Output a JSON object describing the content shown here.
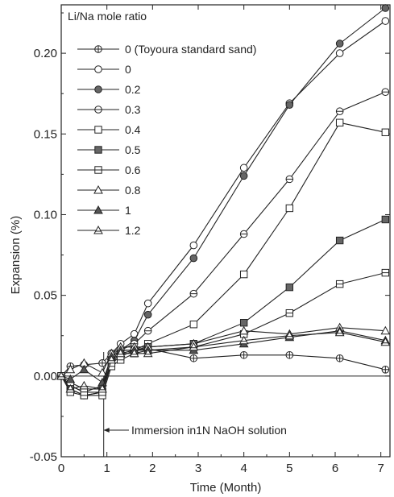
{
  "chart_data": {
    "type": "line",
    "xlabel": "Time (Month)",
    "ylabel": "Expansion (%)",
    "xlim": [
      0,
      7.2
    ],
    "ylim": [
      -0.05,
      0.23
    ],
    "xticks": [
      0,
      1,
      2,
      3,
      4,
      5,
      6,
      7
    ],
    "yticks": [
      -0.05,
      0.0,
      0.05,
      0.1,
      0.15,
      0.2
    ],
    "ytick_labels": [
      "-0.05",
      "0.00",
      "0.05",
      "0.10",
      "0.15",
      "0.20"
    ],
    "grid": false,
    "legend_title": "Li/Na mole ratio",
    "legend_position": "top-left",
    "annotation": {
      "text": "Immersion in1N NaOH solution",
      "x": 0.93
    },
    "zero_line": 0.0,
    "series": [
      {
        "name": "0 (Toyoura standard sand)",
        "marker": "circle-cross",
        "x": [
          0,
          0.2,
          0.5,
          0.9,
          1.1,
          1.3,
          1.6,
          1.9,
          2.9,
          4.0,
          5.0,
          6.1,
          7.1
        ],
        "y": [
          0.0,
          0.006,
          0.007,
          0.008,
          0.014,
          0.016,
          0.016,
          0.017,
          0.011,
          0.013,
          0.013,
          0.011,
          0.004
        ]
      },
      {
        "name": "0",
        "marker": "circle-open",
        "x": [
          0,
          0.2,
          0.5,
          0.9,
          1.1,
          1.3,
          1.6,
          1.9,
          2.9,
          4.0,
          5.0,
          6.1,
          7.1
        ],
        "y": [
          0.0,
          -0.004,
          -0.008,
          -0.008,
          0.014,
          0.02,
          0.026,
          0.045,
          0.081,
          0.129,
          0.169,
          0.2,
          0.22
        ]
      },
      {
        "name": "0.2",
        "marker": "circle-dotted",
        "x": [
          0,
          0.2,
          0.5,
          0.9,
          1.1,
          1.3,
          1.6,
          1.9,
          2.9,
          4.0,
          5.0,
          6.1,
          7.1
        ],
        "y": [
          0.0,
          -0.006,
          -0.01,
          -0.006,
          0.012,
          0.016,
          0.022,
          0.038,
          0.073,
          0.124,
          0.168,
          0.206,
          0.228
        ]
      },
      {
        "name": "0.3",
        "marker": "circle-line",
        "x": [
          0,
          0.2,
          0.5,
          0.9,
          1.1,
          1.3,
          1.6,
          1.9,
          2.9,
          4.0,
          5.0,
          6.1,
          7.1
        ],
        "y": [
          0.0,
          -0.008,
          -0.012,
          -0.01,
          0.01,
          0.016,
          0.02,
          0.028,
          0.051,
          0.088,
          0.122,
          0.164,
          0.176
        ]
      },
      {
        "name": "0.4",
        "marker": "square-open",
        "x": [
          0,
          0.2,
          0.5,
          0.9,
          1.1,
          1.3,
          1.6,
          1.9,
          2.9,
          4.0,
          5.0,
          6.1,
          7.1
        ],
        "y": [
          0.0,
          -0.006,
          -0.01,
          -0.01,
          0.008,
          0.014,
          0.016,
          0.02,
          0.032,
          0.063,
          0.104,
          0.157,
          0.151
        ]
      },
      {
        "name": "0.5",
        "marker": "square-dotted",
        "x": [
          0,
          0.2,
          0.5,
          0.9,
          1.1,
          1.3,
          1.6,
          1.9,
          2.9,
          4.0,
          5.0,
          6.1,
          7.1
        ],
        "y": [
          0.0,
          -0.008,
          -0.012,
          -0.01,
          0.008,
          0.012,
          0.016,
          0.018,
          0.02,
          0.033,
          0.055,
          0.084,
          0.097
        ]
      },
      {
        "name": "0.6",
        "marker": "square-line",
        "x": [
          0,
          0.2,
          0.5,
          0.9,
          1.1,
          1.3,
          1.6,
          1.9,
          2.9,
          4.0,
          5.0,
          6.1,
          7.1
        ],
        "y": [
          0.0,
          -0.01,
          -0.012,
          -0.012,
          0.006,
          0.01,
          0.014,
          0.016,
          0.018,
          0.026,
          0.039,
          0.057,
          0.064
        ]
      },
      {
        "name": "0.8",
        "marker": "triangle-open",
        "x": [
          0,
          0.2,
          0.5,
          0.9,
          1.1,
          1.3,
          1.6,
          1.9,
          2.9,
          4.0,
          5.0,
          6.1,
          7.1
        ],
        "y": [
          0.0,
          0.004,
          0.008,
          0.002,
          0.014,
          0.018,
          0.018,
          0.018,
          0.02,
          0.028,
          0.026,
          0.03,
          0.028
        ]
      },
      {
        "name": "1",
        "marker": "triangle-filled",
        "x": [
          0,
          0.2,
          0.5,
          0.9,
          1.1,
          1.3,
          1.6,
          1.9,
          2.9,
          4.0,
          5.0,
          6.1,
          7.1
        ],
        "y": [
          0.0,
          -0.002,
          0.004,
          -0.004,
          0.012,
          0.016,
          0.016,
          0.016,
          0.016,
          0.02,
          0.024,
          0.028,
          0.022
        ]
      },
      {
        "name": "1.2",
        "marker": "triangle-line",
        "x": [
          0,
          0.2,
          0.5,
          0.9,
          1.1,
          1.3,
          1.6,
          1.9,
          2.9,
          4.0,
          5.0,
          6.1,
          7.1
        ],
        "y": [
          0.0,
          -0.008,
          -0.006,
          -0.008,
          0.01,
          0.014,
          0.014,
          0.014,
          0.018,
          0.022,
          0.025,
          0.027,
          0.021
        ]
      }
    ]
  }
}
